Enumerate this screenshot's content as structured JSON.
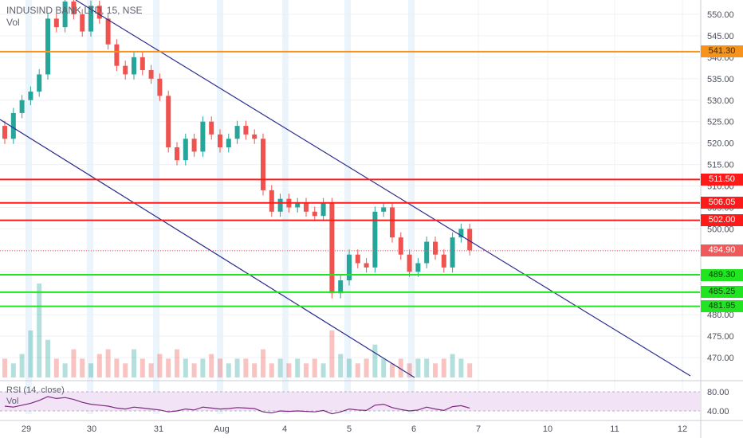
{
  "symbol": {
    "name": "INDUSIND BANK LTD",
    "interval": "15",
    "exchange": "NSE",
    "title": "INDUSIND BANK LTD, 15, NSE"
  },
  "volume_label": "Vol",
  "rsi": {
    "title": "RSI (14, close)",
    "vol_label": "Vol",
    "levels": [
      "80.00",
      "40.00"
    ]
  },
  "price_axis": {
    "ticks": [
      "550.00",
      "545.00",
      "540.00",
      "535.00",
      "530.00",
      "525.00",
      "520.00",
      "515.00",
      "510.00",
      "505.00",
      "500.00",
      "495.00",
      "490.00",
      "485.00",
      "480.00",
      "475.00",
      "470.00"
    ]
  },
  "time_axis": {
    "ticks": [
      "29",
      "30",
      "31",
      "Aug",
      "4",
      "5",
      "6",
      "7",
      "10",
      "11",
      "12"
    ]
  },
  "levels": [
    {
      "id": "orange",
      "price": 541.3,
      "label": "541.30",
      "color": "#f7931a"
    },
    {
      "id": "r1",
      "price": 511.5,
      "label": "511.50",
      "color": "#ff1a1a"
    },
    {
      "id": "r2",
      "price": 506.05,
      "label": "506.05",
      "color": "#ff1a1a"
    },
    {
      "id": "r3",
      "price": 502.0,
      "label": "502.00",
      "color": "#ff1a1a"
    },
    {
      "id": "g1",
      "price": 489.3,
      "label": "489.30",
      "color": "#22e522"
    },
    {
      "id": "g2",
      "price": 485.25,
      "label": "485.25",
      "color": "#22e522"
    },
    {
      "id": "g3",
      "price": 481.95,
      "label": "481.95",
      "color": "#22e522"
    }
  ],
  "last_price": {
    "value": 494.9,
    "label": "494.90",
    "color": "#f05959"
  },
  "colors": {
    "up": "#26a69a",
    "down": "#ef5350",
    "channel": "#2a2e8c",
    "grid": "#eef0f4",
    "session": "#d8ecfb",
    "rsi_band": "#f3e3f7",
    "rsi_line": "#7b2a7e"
  },
  "chart_data": {
    "type": "candlestick",
    "price_range": [
      466,
      553
    ],
    "series": [
      {
        "name": "price",
        "points": [
          [
            524,
            521
          ],
          [
            521,
            527
          ],
          [
            527,
            530
          ],
          [
            530,
            532
          ],
          [
            532,
            536
          ],
          [
            536,
            549
          ],
          [
            549,
            547
          ],
          [
            547,
            553
          ],
          [
            553,
            550
          ],
          [
            550,
            546
          ],
          [
            546,
            552
          ],
          [
            552,
            549
          ],
          [
            549,
            543
          ],
          [
            543,
            538
          ],
          [
            538,
            536
          ],
          [
            536,
            540
          ],
          [
            540,
            537
          ],
          [
            537,
            535
          ],
          [
            535,
            531
          ],
          [
            531,
            519
          ],
          [
            519,
            516
          ],
          [
            516,
            521
          ],
          [
            521,
            518
          ],
          [
            518,
            525
          ],
          [
            525,
            522
          ],
          [
            522,
            519
          ],
          [
            519,
            521
          ],
          [
            521,
            524
          ],
          [
            524,
            522
          ],
          [
            522,
            521
          ],
          [
            521,
            509
          ],
          [
            509,
            504
          ],
          [
            504,
            507
          ],
          [
            507,
            505
          ],
          [
            505,
            506
          ],
          [
            506,
            504
          ],
          [
            504,
            503
          ],
          [
            503,
            506
          ],
          [
            506,
            485
          ],
          [
            485,
            488
          ],
          [
            488,
            494
          ],
          [
            494,
            492
          ],
          [
            492,
            491
          ],
          [
            491,
            504
          ],
          [
            504,
            505
          ],
          [
            505,
            498
          ],
          [
            498,
            494
          ],
          [
            494,
            490
          ],
          [
            490,
            492
          ],
          [
            492,
            497
          ],
          [
            497,
            494
          ],
          [
            494,
            491
          ],
          [
            491,
            498
          ],
          [
            498,
            500
          ],
          [
            500,
            495
          ]
        ]
      }
    ],
    "x_labels": [
      "29",
      "30",
      "31",
      "Aug",
      "4",
      "5",
      "6",
      "7",
      "10",
      "11",
      "12"
    ],
    "volume_note": "volume histogram below price",
    "rsi_levels": [
      80,
      40
    ]
  }
}
